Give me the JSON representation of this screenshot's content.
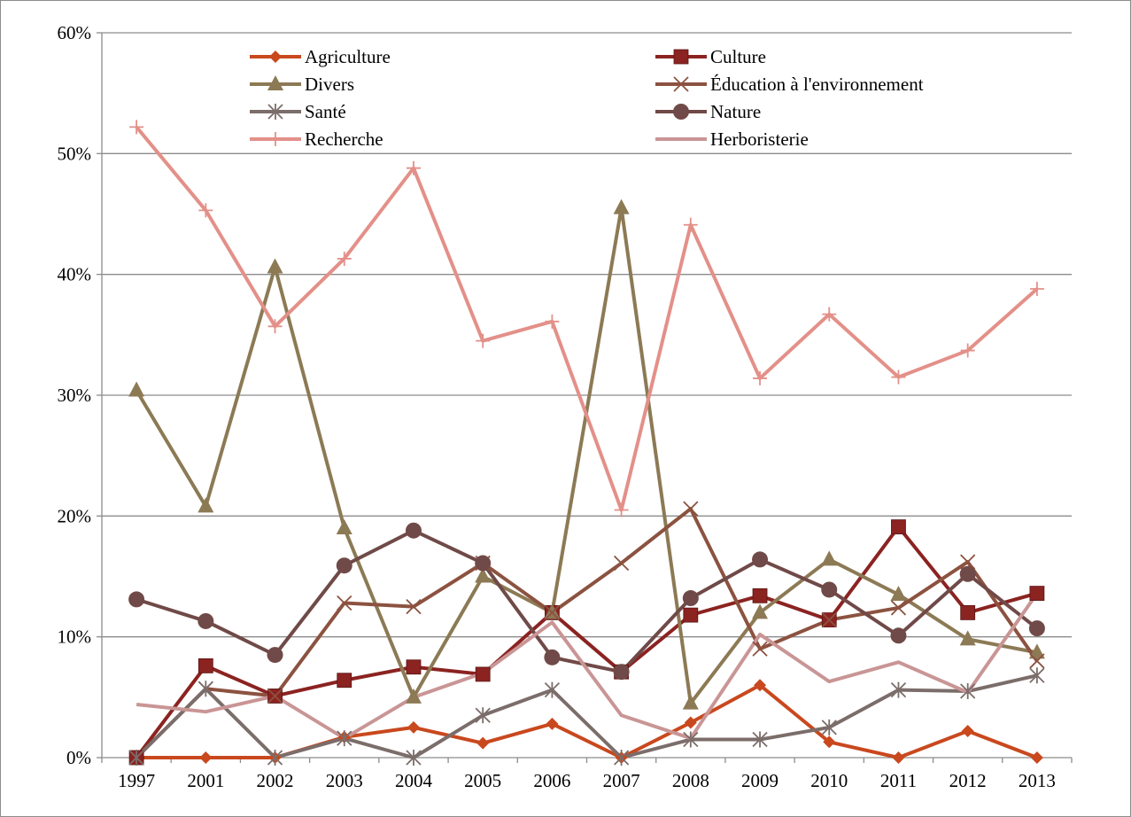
{
  "chart_data": {
    "type": "line",
    "title": "",
    "xlabel": "",
    "ylabel": "",
    "x": [
      "1997",
      "2001",
      "2002",
      "2003",
      "2004",
      "2005",
      "2006",
      "2007",
      "2008",
      "2009",
      "2010",
      "2011",
      "2012",
      "2013"
    ],
    "ylim": [
      0,
      0.6
    ],
    "yticks": [
      {
        "value": 0,
        "label": "0%"
      },
      {
        "value": 0.1,
        "label": "10%"
      },
      {
        "value": 0.2,
        "label": "20%"
      },
      {
        "value": 0.3,
        "label": "30%"
      },
      {
        "value": 0.4,
        "label": "40%"
      },
      {
        "value": 0.5,
        "label": "50%"
      },
      {
        "value": 0.6,
        "label": "60%"
      }
    ],
    "grid": "horizontal",
    "legend_position": "top",
    "series": [
      {
        "name": "Agriculture",
        "color": "#c9481e",
        "marker": "diamond",
        "values": [
          0,
          0,
          0,
          0.017,
          0.025,
          0.012,
          0.028,
          0,
          0.029,
          0.06,
          0.013,
          0,
          0.022,
          0
        ]
      },
      {
        "name": "Culture",
        "color": "#8b2321",
        "marker": "square",
        "values": [
          0,
          0.076,
          0.051,
          0.064,
          0.075,
          0.069,
          0.12,
          0.071,
          0.118,
          0.134,
          0.114,
          0.191,
          0.12,
          0.136
        ]
      },
      {
        "name": "Divers",
        "color": "#8c7a55",
        "marker": "triangle",
        "values": [
          0.304,
          0.208,
          0.406,
          0.19,
          0.05,
          0.15,
          0.12,
          0.455,
          0.045,
          0.12,
          0.164,
          0.135,
          0.098,
          0.087
        ]
      },
      {
        "name": "Éducation à l'environnement",
        "color": "#8c5240",
        "marker": "x",
        "values": [
          0,
          0.057,
          0.051,
          0.128,
          0.125,
          0.161,
          0.12,
          0.161,
          0.206,
          0.09,
          0.114,
          0.124,
          0.162,
          0.08
        ]
      },
      {
        "name": "Santé",
        "color": "#7b6d6a",
        "marker": "star",
        "values": [
          0,
          0.057,
          0,
          0.016,
          0,
          0.035,
          0.056,
          0,
          0.015,
          0.015,
          0.025,
          0.056,
          0.055,
          0.068
        ]
      },
      {
        "name": "Nature",
        "color": "#704a48",
        "marker": "circle",
        "values": [
          0.131,
          0.113,
          0.085,
          0.159,
          0.188,
          0.161,
          0.083,
          0.071,
          0.132,
          0.164,
          0.139,
          0.101,
          0.152,
          0.107
        ]
      },
      {
        "name": "Recherche",
        "color": "#e39089",
        "marker": "plus",
        "values": [
          0.522,
          0.453,
          0.357,
          0.413,
          0.488,
          0.345,
          0.361,
          0.205,
          0.441,
          0.314,
          0.367,
          0.315,
          0.337,
          0.388
        ]
      },
      {
        "name": "Herboristerie",
        "color": "#c99595",
        "marker": "none",
        "values": [
          0.044,
          0.038,
          0.051,
          0.016,
          0.05,
          0.07,
          0.112,
          0.035,
          0.016,
          0.102,
          0.063,
          0.079,
          0.054,
          0.136
        ]
      }
    ]
  }
}
